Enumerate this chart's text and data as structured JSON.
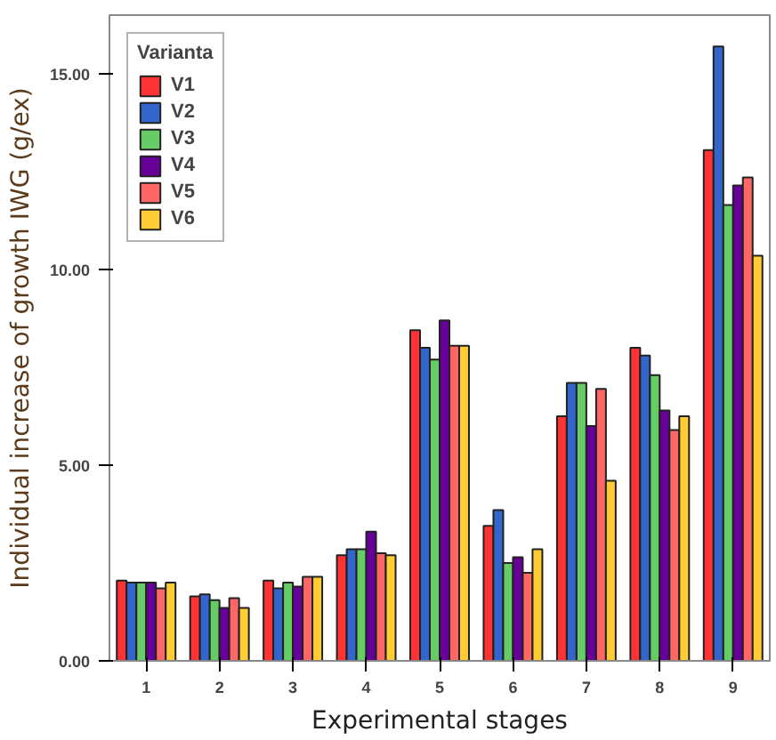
{
  "chart_data": {
    "type": "bar",
    "xlabel": "Experimental stages",
    "ylabel": "Individual increase of growth IWG (g/ex)",
    "legend_title": "Varianta",
    "legend": "top left",
    "grid": false,
    "categories": [
      "1",
      "2",
      "3",
      "4",
      "5",
      "6",
      "7",
      "8",
      "9"
    ],
    "ylim": [
      0,
      16.5
    ],
    "yticks": [
      {
        "value": 0,
        "label": "0.00"
      },
      {
        "value": 5,
        "label": "5.00"
      },
      {
        "value": 10,
        "label": "10.00"
      },
      {
        "value": 15,
        "label": "15.00"
      }
    ],
    "series": [
      {
        "name": "V1",
        "color": "#ff3333",
        "values": [
          2.05,
          1.65,
          2.05,
          2.7,
          8.45,
          3.45,
          6.25,
          8.0,
          13.05
        ]
      },
      {
        "name": "V2",
        "color": "#3366cc",
        "values": [
          2.0,
          1.7,
          1.85,
          2.85,
          8.0,
          3.85,
          7.1,
          7.8,
          15.7
        ]
      },
      {
        "name": "V3",
        "color": "#66cc66",
        "values": [
          2.0,
          1.55,
          2.0,
          2.85,
          7.7,
          2.5,
          7.1,
          7.3,
          11.65
        ]
      },
      {
        "name": "V4",
        "color": "#660099",
        "values": [
          2.0,
          1.35,
          1.9,
          3.3,
          8.7,
          2.65,
          6.0,
          6.4,
          12.15
        ]
      },
      {
        "name": "V5",
        "color": "#ff6666",
        "values": [
          1.85,
          1.6,
          2.15,
          2.75,
          8.05,
          2.25,
          6.95,
          5.9,
          12.35
        ]
      },
      {
        "name": "V6",
        "color": "#ffcc33",
        "values": [
          2.0,
          1.35,
          2.15,
          2.7,
          8.05,
          2.85,
          4.6,
          6.25,
          10.35
        ]
      }
    ]
  }
}
